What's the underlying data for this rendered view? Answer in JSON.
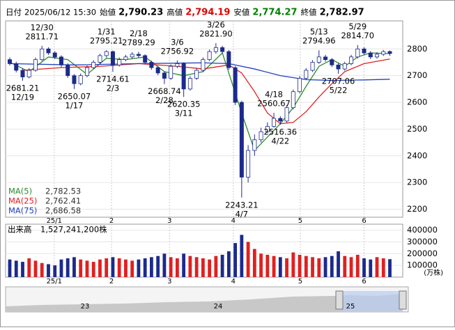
{
  "chart_data": {
    "type": "candlestick",
    "header": [
      {
        "label": "日付",
        "value": "2025/06/12 15:30",
        "color": "#000000"
      },
      {
        "label": "始値",
        "value": "2,790.23",
        "color": "#000000"
      },
      {
        "label": "高値",
        "value": "2,794.19",
        "color": "#e00000"
      },
      {
        "label": "安値",
        "value": "2,774.27",
        "color": "#008000"
      },
      {
        "label": "終値",
        "value": "2,782.97",
        "color": "#000000"
      }
    ],
    "x": [
      0,
      1,
      2,
      3,
      4,
      5,
      6,
      7,
      8,
      9,
      10,
      11,
      12,
      13,
      14,
      15,
      16,
      17,
      18,
      19,
      20,
      21,
      22,
      23,
      24,
      25,
      26,
      27,
      28,
      29,
      30,
      31,
      32,
      33,
      34,
      35,
      36,
      37,
      38,
      39,
      40,
      41,
      42,
      43,
      44,
      45,
      46,
      47,
      48,
      49,
      50,
      51,
      52,
      53,
      54,
      55,
      56,
      57,
      58,
      59
    ],
    "open": [
      2760,
      2745,
      2720,
      2695,
      2720,
      2760,
      2800,
      2785,
      2770,
      2740,
      2700,
      2670,
      2700,
      2730,
      2750,
      2775,
      2790,
      2740,
      2760,
      2770,
      2780,
      2775,
      2750,
      2730,
      2710,
      2690,
      2735,
      2745,
      2650,
      2690,
      2720,
      2760,
      2790,
      2805,
      2790,
      2730,
      2600,
      2320,
      2420,
      2460,
      2490,
      2510,
      2540,
      2530,
      2580,
      2640,
      2690,
      2720,
      2750,
      2770,
      2760,
      2740,
      2725,
      2745,
      2770,
      2800,
      2785,
      2770,
      2780,
      2790.23
    ],
    "high": [
      2768,
      2752,
      2728,
      2728,
      2768,
      2811.71,
      2806,
      2792,
      2776,
      2746,
      2706,
      2708,
      2738,
      2758,
      2782,
      2795.21,
      2794,
      2768,
      2778,
      2788,
      2789.29,
      2780,
      2756,
      2736,
      2716,
      2742,
      2756.92,
      2750,
      2698,
      2728,
      2768,
      2798,
      2821.9,
      2812,
      2796,
      2736,
      2606,
      2440,
      2480,
      2505,
      2525,
      2560.67,
      2548,
      2590,
      2648,
      2698,
      2728,
      2758,
      2794.96,
      2778,
      2766,
      2746,
      2752,
      2778,
      2814.7,
      2806,
      2792,
      2788,
      2796,
      2794.19
    ],
    "low": [
      2738,
      2712,
      2681.21,
      2690,
      2715,
      2755,
      2778,
      2762,
      2732,
      2692,
      2650.07,
      2664,
      2694,
      2724,
      2744,
      2768,
      2714.61,
      2734,
      2754,
      2764,
      2768,
      2742,
      2722,
      2702,
      2668.74,
      2684,
      2728,
      2620.35,
      2644,
      2684,
      2714,
      2754,
      2782,
      2782,
      2722,
      2590,
      2243.21,
      2300,
      2400,
      2450,
      2485,
      2505,
      2516.36,
      2524,
      2574,
      2634,
      2684,
      2714,
      2744,
      2752,
      2732,
      2707.06,
      2719,
      2739,
      2764,
      2778,
      2762,
      2764,
      2774,
      2774.27
    ],
    "close": [
      2745,
      2720,
      2695,
      2720,
      2760,
      2800,
      2785,
      2770,
      2740,
      2700,
      2670,
      2700,
      2730,
      2750,
      2775,
      2790,
      2740,
      2760,
      2770,
      2780,
      2775,
      2750,
      2730,
      2710,
      2690,
      2735,
      2745,
      2650,
      2690,
      2720,
      2760,
      2790,
      2805,
      2790,
      2730,
      2600,
      2320,
      2420,
      2460,
      2490,
      2510,
      2540,
      2530,
      2580,
      2640,
      2690,
      2720,
      2750,
      2770,
      2760,
      2740,
      2725,
      2745,
      2770,
      2800,
      2785,
      2770,
      2780,
      2790,
      2782.97
    ],
    "up_color": "#ffffff",
    "down_color": "#1c2a8c",
    "outline_color": "#1c2a8c",
    "ylim": [
      2170,
      2905
    ],
    "yticks": [
      2200,
      2300,
      2400,
      2500,
      2600,
      2700,
      2800
    ],
    "xlim": [
      -0.65,
      61
    ],
    "xticks": [
      {
        "value": 6.9,
        "label": "25/1"
      },
      {
        "value": 15.8,
        "label": "2"
      },
      {
        "value": 24.8,
        "label": "3"
      },
      {
        "value": 34.7,
        "label": "4"
      },
      {
        "value": 45.1,
        "label": "5"
      },
      {
        "value": 55,
        "label": "6"
      }
    ],
    "grid": true,
    "series": [
      {
        "name": "MA(5)",
        "color": "#2e8b2e",
        "latest": "2,782.53",
        "x": [
          0,
          3,
          6,
          9,
          12,
          15,
          18,
          21,
          24,
          27,
          30,
          33,
          36,
          38,
          40,
          42,
          44,
          46,
          48,
          50,
          52,
          54,
          56,
          59
        ],
        "values": [
          2750,
          2715,
          2770,
          2760,
          2705,
          2765,
          2760,
          2770,
          2715,
          2700,
          2715,
          2785,
          2560,
          2420,
          2470,
          2520,
          2580,
          2660,
          2735,
          2760,
          2735,
          2770,
          2785,
          2782.53
        ]
      },
      {
        "name": "MA(25)",
        "color": "#e02020",
        "latest": "2,762.41",
        "x": [
          2,
          8,
          14,
          20,
          26,
          30,
          34,
          36,
          38,
          40,
          42,
          44,
          46,
          48,
          50,
          52,
          55,
          59
        ],
        "values": [
          2720,
          2730,
          2735,
          2745,
          2735,
          2725,
          2740,
          2710,
          2640,
          2560,
          2520,
          2525,
          2565,
          2620,
          2670,
          2715,
          2745,
          2762.41
        ]
      },
      {
        "name": "MA(75)",
        "color": "#2040c0",
        "latest": "2,686.58",
        "x": [
          0,
          10,
          20,
          30,
          34,
          38,
          42,
          46,
          50,
          55,
          59
        ],
        "values": [
          2745,
          2740,
          2745,
          2748,
          2745,
          2725,
          2700,
          2685,
          2682,
          2684,
          2686.58
        ]
      }
    ],
    "annotations": [
      {
        "x": 5,
        "y": 2811.71,
        "date": "12/30",
        "price": "2811.71",
        "position": "above"
      },
      {
        "x": 15,
        "y": 2795.21,
        "date": "1/31",
        "price": "2795.21",
        "position": "above"
      },
      {
        "x": 20,
        "y": 2789.29,
        "date": "2/18",
        "price": "2789.29",
        "position": "above"
      },
      {
        "x": 26,
        "y": 2756.92,
        "date": "3/6",
        "price": "2756.92",
        "position": "above"
      },
      {
        "x": 32,
        "y": 2821.9,
        "date": "3/26",
        "price": "2821.90",
        "position": "above"
      },
      {
        "x": 48,
        "y": 2794.96,
        "date": "5/13",
        "price": "2794.96",
        "position": "above"
      },
      {
        "x": 54,
        "y": 2814.7,
        "date": "5/29",
        "price": "2814.70",
        "position": "above"
      },
      {
        "x": 41,
        "y": 2560.67,
        "date": "4/18",
        "price": "2560.67",
        "position": "above"
      },
      {
        "x": 2,
        "y": 2681.21,
        "date": "12/19",
        "price": "2681.21",
        "position": "below"
      },
      {
        "x": 10,
        "y": 2650.07,
        "date": "1/17",
        "price": "2650.07",
        "position": "below"
      },
      {
        "x": 16,
        "y": 2714.61,
        "date": "2/3",
        "price": "2714.61",
        "position": "below"
      },
      {
        "x": 24,
        "y": 2668.74,
        "date": "2/28",
        "price": "2668.74",
        "position": "below"
      },
      {
        "x": 27,
        "y": 2620.35,
        "date": "3/11",
        "price": "2620.35",
        "position": "below"
      },
      {
        "x": 36,
        "y": 2243.21,
        "date": "4/7",
        "price": "2243.21",
        "position": "below"
      },
      {
        "x": 42,
        "y": 2516.36,
        "date": "4/22",
        "price": "2516.36",
        "position": "below"
      },
      {
        "x": 51,
        "y": 2707.06,
        "date": "5/22",
        "price": "2707.06",
        "position": "below"
      }
    ],
    "volume": {
      "title": "出来高",
      "total": "1,527,241,200株",
      "unit": "(万株)",
      "values": [
        150000,
        140000,
        130000,
        160000,
        140000,
        120000,
        110000,
        100000,
        150000,
        160000,
        170000,
        150000,
        140000,
        130000,
        150000,
        160000,
        170000,
        160000,
        150000,
        140000,
        150000,
        160000,
        170000,
        180000,
        200000,
        170000,
        160000,
        200000,
        180000,
        170000,
        160000,
        150000,
        180000,
        190000,
        220000,
        290000,
        360000,
        300000,
        240000,
        200000,
        190000,
        180000,
        170000,
        160000,
        210000,
        190000,
        180000,
        170000,
        160000,
        170000,
        180000,
        220000,
        180000,
        170000,
        190000,
        160000,
        150000,
        170000,
        160000,
        152724
      ],
      "up_color": "#e02020",
      "down_color": "#1c2a8c",
      "ylim": [
        0,
        451000
      ],
      "yticks": [
        100000,
        200000,
        300000,
        400000
      ]
    },
    "navigator": {
      "labels": [
        "23",
        "24",
        "25"
      ]
    }
  }
}
